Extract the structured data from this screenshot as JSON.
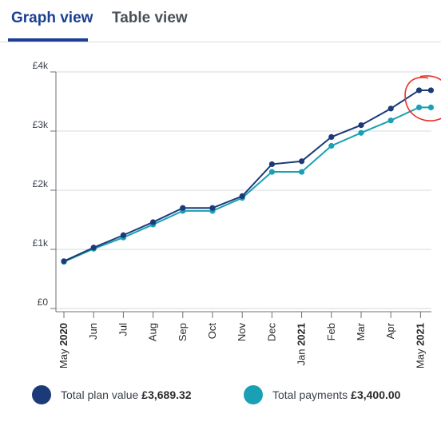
{
  "tabs": [
    {
      "label": "Graph view",
      "active": true
    },
    {
      "label": "Table view",
      "active": false
    }
  ],
  "colors": {
    "plan": "#1c3a78",
    "payments": "#1aa0b4",
    "annotation": "#e8312a"
  },
  "chart_data": {
    "type": "line",
    "categories": [
      "May 2020",
      "Jun",
      "Jul",
      "Aug",
      "Sep",
      "Oct",
      "Nov",
      "Dec",
      "Jan 2021",
      "Feb",
      "Mar",
      "Apr",
      "May 2021"
    ],
    "y_ticks": [
      "£0",
      "£1k",
      "£2k",
      "£3k",
      "£4k"
    ],
    "ylim": [
      0,
      4000
    ],
    "series": [
      {
        "name": "Total plan value",
        "x": [
          0,
          1,
          2,
          3,
          4,
          5,
          6,
          7,
          8,
          9,
          10,
          11,
          11.95,
          12.35
        ],
        "values": [
          800,
          1030,
          1240,
          1460,
          1700,
          1700,
          1900,
          2440,
          2490,
          2900,
          3100,
          3380,
          3690,
          3690
        ]
      },
      {
        "name": "Total payments",
        "x": [
          0,
          1,
          2,
          3,
          4,
          5,
          6,
          7,
          8,
          9,
          10,
          11,
          11.95,
          12.35
        ],
        "values": [
          790,
          1010,
          1200,
          1420,
          1650,
          1650,
          1870,
          2310,
          2310,
          2750,
          2970,
          3180,
          3400,
          3400
        ]
      }
    ]
  },
  "legend": {
    "plan_label": "Total plan value",
    "plan_amount": "£3,689.32",
    "payments_label": "Total payments",
    "payments_amount": "£3,400.00"
  }
}
